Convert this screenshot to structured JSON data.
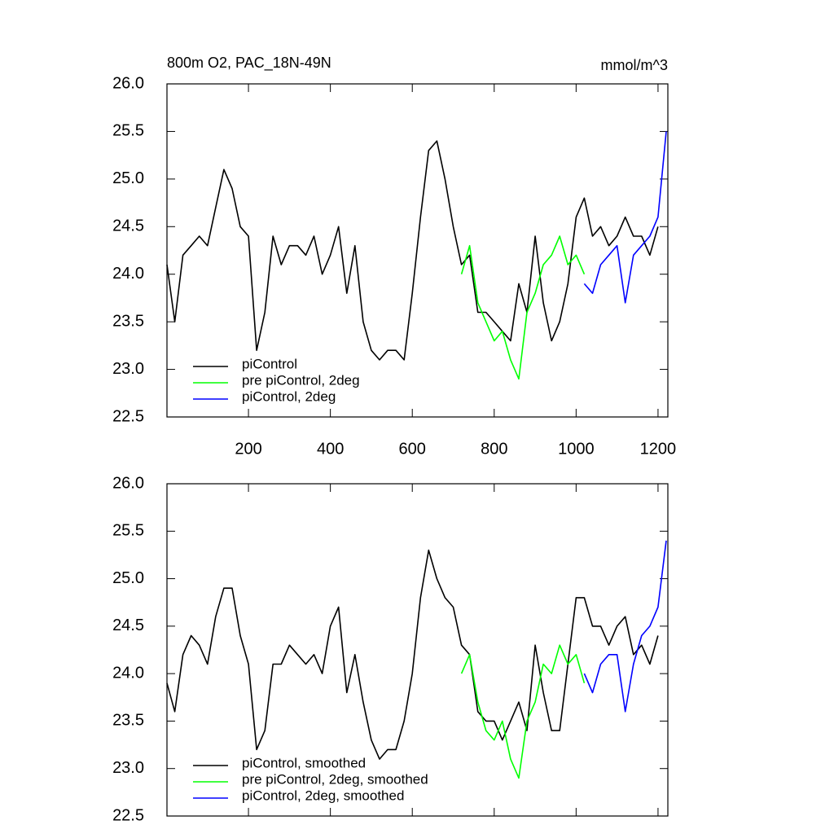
{
  "chart_data": [
    {
      "type": "line",
      "title": "800m O2, PAC_18N-49N",
      "units": "mmol/m^3",
      "xlim": [
        1,
        1224
      ],
      "xticks": [
        200,
        400,
        600,
        800,
        1000,
        1200
      ],
      "xticklabels": true,
      "ylim": [
        22.5,
        26
      ],
      "yticks": [
        22.5,
        {
          "value": 23,
          "label": "23.0"
        },
        23.5,
        {
          "value": 24,
          "label": "24.0"
        },
        24.5,
        {
          "value": 25,
          "label": "25.0"
        },
        25.5,
        {
          "value": 26,
          "label": "26.0"
        }
      ],
      "legend": "lower left",
      "series": [
        {
          "name": "piControl",
          "color": "#000000",
          "x": [
            1,
            20,
            40,
            60,
            80,
            100,
            120,
            140,
            160,
            180,
            200,
            220,
            240,
            260,
            280,
            300,
            320,
            340,
            360,
            380,
            400,
            420,
            440,
            460,
            480,
            500,
            520,
            540,
            560,
            580,
            600,
            620,
            640,
            660,
            680,
            700,
            720,
            740,
            760,
            780,
            800,
            820,
            840,
            860,
            880,
            900,
            920,
            940,
            960,
            980,
            1000,
            1020,
            1040,
            1060,
            1080,
            1100,
            1120,
            1140,
            1160,
            1180,
            1200
          ],
          "values": [
            24.1,
            23.5,
            24.2,
            24.3,
            24.4,
            24.3,
            24.7,
            25.1,
            24.9,
            24.5,
            24.4,
            23.2,
            23.6,
            24.4,
            24.1,
            24.3,
            24.3,
            24.2,
            24.4,
            24.0,
            24.2,
            24.5,
            23.8,
            24.3,
            23.5,
            23.2,
            23.1,
            23.2,
            23.2,
            23.1,
            23.8,
            24.6,
            25.3,
            25.4,
            25.0,
            24.5,
            24.1,
            24.2,
            23.6,
            23.6,
            23.5,
            23.4,
            23.3,
            23.9,
            23.6,
            24.4,
            23.7,
            23.3,
            23.5,
            23.9,
            24.6,
            24.8,
            24.4,
            24.5,
            24.3,
            24.4,
            24.6,
            24.4,
            24.4,
            24.2,
            24.5
          ]
        },
        {
          "name": "pre piControl, 2deg",
          "color": "#00ff00",
          "x": [
            720,
            740,
            760,
            780,
            800,
            820,
            840,
            860,
            880,
            900,
            920,
            940,
            960,
            980,
            1000,
            1020
          ],
          "values": [
            24.0,
            24.3,
            23.7,
            23.5,
            23.3,
            23.4,
            23.1,
            22.9,
            23.6,
            23.8,
            24.1,
            24.2,
            24.4,
            24.1,
            24.2,
            24.0
          ]
        },
        {
          "name": "piControl, 2deg",
          "color": "#0000ff",
          "x": [
            1020,
            1040,
            1060,
            1080,
            1100,
            1120,
            1140,
            1160,
            1180,
            1200,
            1220
          ],
          "values": [
            23.9,
            23.8,
            24.1,
            24.2,
            24.3,
            23.7,
            24.2,
            24.3,
            24.4,
            24.6,
            25.5
          ]
        }
      ]
    },
    {
      "type": "line",
      "xlim": [
        1,
        1224
      ],
      "xticks": [
        200,
        400,
        600,
        800,
        1000,
        1200
      ],
      "xticklabels": false,
      "ylim": [
        22.5,
        26
      ],
      "yticks": [
        22.5,
        {
          "value": 23,
          "label": "23.0"
        },
        23.5,
        {
          "value": 24,
          "label": "24.0"
        },
        24.5,
        {
          "value": 25,
          "label": "25.0"
        },
        25.5,
        {
          "value": 26,
          "label": "26.0"
        }
      ],
      "legend": "lower left",
      "series": [
        {
          "name": "piControl, smoothed",
          "color": "#000000",
          "x": [
            1,
            20,
            40,
            60,
            80,
            100,
            120,
            140,
            160,
            180,
            200,
            220,
            240,
            260,
            280,
            300,
            320,
            340,
            360,
            380,
            400,
            420,
            440,
            460,
            480,
            500,
            520,
            540,
            560,
            580,
            600,
            620,
            640,
            660,
            680,
            700,
            720,
            740,
            760,
            780,
            800,
            820,
            840,
            860,
            880,
            900,
            920,
            940,
            960,
            980,
            1000,
            1020,
            1040,
            1060,
            1080,
            1100,
            1120,
            1140,
            1160,
            1180,
            1200
          ],
          "values": [
            23.9,
            23.6,
            24.2,
            24.4,
            24.3,
            24.1,
            24.6,
            24.9,
            24.9,
            24.4,
            24.1,
            23.2,
            23.4,
            24.1,
            24.1,
            24.3,
            24.2,
            24.1,
            24.2,
            24.0,
            24.5,
            24.7,
            23.8,
            24.2,
            23.7,
            23.3,
            23.1,
            23.2,
            23.2,
            23.5,
            24.0,
            24.8,
            25.3,
            25.0,
            24.8,
            24.7,
            24.3,
            24.2,
            23.6,
            23.5,
            23.5,
            23.3,
            23.5,
            23.7,
            23.4,
            24.3,
            23.8,
            23.4,
            23.4,
            24.1,
            24.8,
            24.8,
            24.5,
            24.5,
            24.3,
            24.5,
            24.6,
            24.2,
            24.3,
            24.1,
            24.4
          ]
        },
        {
          "name": "pre piControl, 2deg, smoothed",
          "color": "#00ff00",
          "x": [
            720,
            740,
            760,
            780,
            800,
            820,
            840,
            860,
            880,
            900,
            920,
            940,
            960,
            980,
            1000,
            1020
          ],
          "values": [
            24.0,
            24.2,
            23.7,
            23.4,
            23.3,
            23.5,
            23.1,
            22.9,
            23.5,
            23.7,
            24.1,
            24.0,
            24.3,
            24.1,
            24.2,
            23.9
          ]
        },
        {
          "name": "piControl, 2deg, smoothed",
          "color": "#0000ff",
          "x": [
            1020,
            1040,
            1060,
            1080,
            1100,
            1120,
            1140,
            1160,
            1180,
            1200,
            1220
          ],
          "values": [
            24.0,
            23.8,
            24.1,
            24.2,
            24.2,
            23.6,
            24.1,
            24.4,
            24.5,
            24.7,
            25.4
          ]
        }
      ]
    }
  ]
}
